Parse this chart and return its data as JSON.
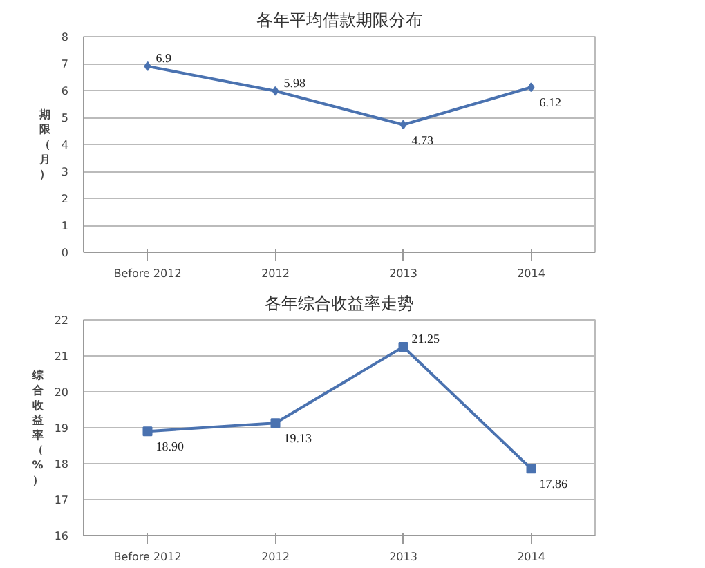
{
  "chart_data": [
    {
      "type": "line",
      "title": "各年平均借款期限分布",
      "ylabel": "期限（月）",
      "categories": [
        "Before 2012",
        "2012",
        "2013",
        "2014"
      ],
      "series": [
        {
          "color": "#4a72b0",
          "values": [
            6.9,
            5.98,
            4.73,
            6.12
          ],
          "value_labels": [
            "6.9",
            "5.98",
            "4.73",
            "6.12"
          ]
        }
      ],
      "ylim": [
        0,
        8
      ],
      "yticks": [
        0,
        1,
        2,
        3,
        4,
        5,
        6,
        7,
        8
      ],
      "grid": "y",
      "marker": "diamond",
      "line_style": "solid"
    },
    {
      "type": "line",
      "title": "各年综合收益率走势",
      "ylabel": "综合收益率（%）",
      "categories": [
        "Before 2012",
        "2012",
        "2013",
        "2014"
      ],
      "series": [
        {
          "color": "#4a72b0",
          "values": [
            18.9,
            19.13,
            21.25,
            17.86
          ],
          "value_labels": [
            "18.90",
            "19.13",
            "21.25",
            "17.86"
          ]
        }
      ],
      "ylim": [
        16,
        22
      ],
      "yticks": [
        16,
        17,
        18,
        19,
        20,
        21,
        22
      ],
      "grid": "y",
      "marker": "square",
      "line_style": "solid"
    }
  ]
}
